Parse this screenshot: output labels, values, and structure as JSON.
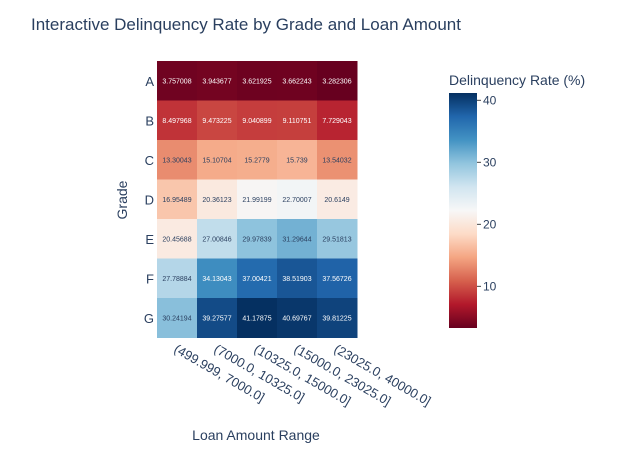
{
  "chart_data": {
    "type": "heatmap",
    "title": "Interactive Delinquency Rate by Grade and Loan Amount",
    "xlabel": "Loan Amount Range",
    "ylabel": "Grade",
    "x_categories": [
      "(499.999, 7000.0]",
      "(7000.0, 10325.0]",
      "(10325.0, 15000.0]",
      "(15000.0, 23025.0]",
      "(23025.0, 40000.0]"
    ],
    "y_categories": [
      "A",
      "B",
      "C",
      "D",
      "E",
      "F",
      "G"
    ],
    "values": [
      [
        3.757008,
        3.943677,
        3.621925,
        3.662243,
        3.282306
      ],
      [
        8.497968,
        9.473225,
        9.040899,
        9.110751,
        7.729043
      ],
      [
        13.30043,
        15.10704,
        15.2779,
        15.739,
        13.54032
      ],
      [
        16.95489,
        20.36123,
        21.99199,
        22.70007,
        20.6149
      ],
      [
        20.45688,
        27.00846,
        29.97839,
        31.29644,
        29.51813
      ],
      [
        27.78884,
        34.13043,
        37.00421,
        38.51903,
        37.56726
      ],
      [
        30.24194,
        39.27577,
        41.17875,
        40.69767,
        39.81225
      ]
    ],
    "colorscale": "RdBu",
    "zrange": [
      3.282306,
      41.17875
    ],
    "colorbar": {
      "title": "Delinquency Rate (%)",
      "tickvals": [
        10,
        20,
        30,
        40
      ],
      "ticktext": [
        "10",
        "20",
        "30",
        "40"
      ]
    },
    "grid": false
  }
}
